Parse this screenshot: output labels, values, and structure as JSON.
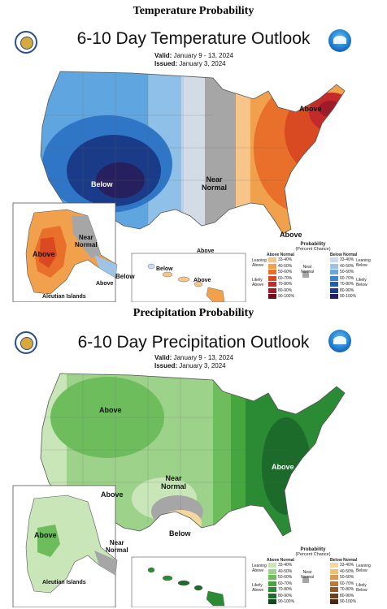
{
  "temperature": {
    "section_title": "Temperature Probability",
    "title": "6-10 Day Temperature Outlook",
    "valid_label": "Valid:",
    "valid_value": "January 9 - 13, 2024",
    "issued_label": "Issued:",
    "issued_value": "January 3, 2024",
    "labels": {
      "above_ne": "Above",
      "below_w": "Below",
      "near_normal": "Near\nNormal",
      "above_fl": "Above",
      "ak_above": "Above",
      "ak_near": "Near\nNormal",
      "ak_below": "Below",
      "aleutian": "Aleutian Islands",
      "aleutian_above": "Above",
      "hi_above1": "Above",
      "hi_below": "Below",
      "hi_above2": "Above"
    },
    "legend": {
      "title": "Probability",
      "subtitle": "(Percent Chance)",
      "col_left": "Above Normal",
      "col_right": "Below Normal",
      "near_normal": "Near Normal",
      "leaning_above": "Leaning Above",
      "likely_above": "Likely Above",
      "leaning_below": "Leaning Below",
      "likely_below": "Likely Below",
      "ranges": [
        "33-40%",
        "40-50%",
        "50-60%",
        "60-70%",
        "70-80%",
        "80-90%",
        "90-100%"
      ],
      "above_colors": [
        "#f7c58a",
        "#f1a04c",
        "#e8702a",
        "#d94a22",
        "#c52a2a",
        "#9e1b2a",
        "#6a0f1f"
      ],
      "below_colors": [
        "#c9dcef",
        "#9dc3e6",
        "#6aa6dc",
        "#3e86cf",
        "#1f5fae",
        "#1a3b88",
        "#27205e"
      ],
      "near_color": "#a6a6a6"
    }
  },
  "precipitation": {
    "section_title": "Precipitation Probability",
    "title": "6-10 Day Precipitation Outlook",
    "valid_label": "Valid:",
    "valid_value": "January 9 - 13, 2024",
    "issued_label": "Issued:",
    "issued_value": "January 3, 2024",
    "labels": {
      "above_nw": "Above",
      "above_se": "Above",
      "above_sw": "Above",
      "near_normal": "Near\nNormal",
      "below_tx": "Below",
      "ak_above": "Above",
      "ak_near": "Near\nNormal",
      "aleutian": "Aleutian Islands"
    },
    "legend": {
      "title": "Probability",
      "subtitle": "(Percent Chance)",
      "col_left": "Above Normal",
      "col_right": "Below Normal",
      "near_normal": "Near Normal",
      "leaning_above": "Leaning Above",
      "likely_above": "Likely Above",
      "leaning_below": "Leaning Below",
      "likely_below": "Likely Below",
      "ranges": [
        "33-40%",
        "40-50%",
        "50-60%",
        "60-70%",
        "70-80%",
        "80-90%",
        "90-100%"
      ],
      "above_colors": [
        "#c8e6b8",
        "#9dd28a",
        "#6dbd5c",
        "#45a63e",
        "#2b8a34",
        "#1c6b2a",
        "#0f4a1d"
      ],
      "below_colors": [
        "#f3d9a0",
        "#eebf74",
        "#d79a4f",
        "#b97a3a",
        "#95592a",
        "#6e3f1e",
        "#4a2812"
      ],
      "near_color": "#a6a6a6"
    }
  }
}
